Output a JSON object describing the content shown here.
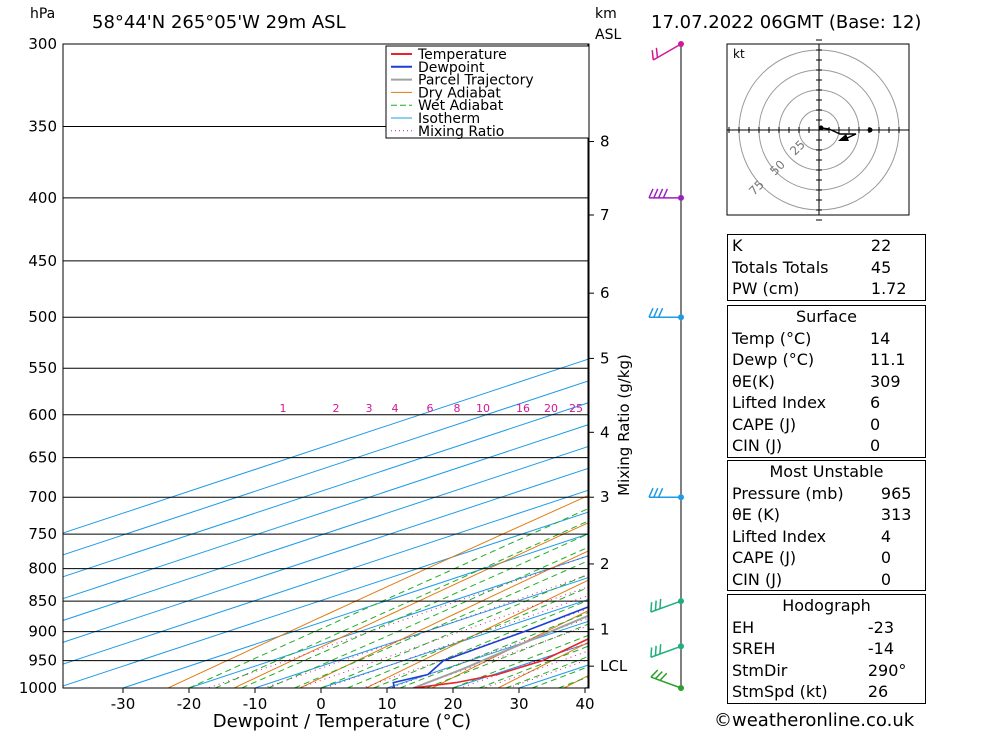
{
  "header": {
    "pressure_unit": "hPa",
    "location": "58°44'N  265°05'W  29m  ASL",
    "height_unit_line1": "km",
    "height_unit_line2": "ASL",
    "datetime": "17.07.2022  06GMT  (Base: 12)"
  },
  "footer": {
    "copyright": "©weatheronline.co.uk"
  },
  "colors": {
    "temperature": "#e8232a",
    "dewpoint": "#1c3fd6",
    "parcel": "#a0a0a0",
    "dry_adiabat": "#e07a10",
    "wet_adiabat": "#1fae1f",
    "isotherm": "#1e9be8",
    "mixing_ratio": "#d0189a"
  },
  "chart_data": {
    "type": "line",
    "title": "58°44'N  265°05'W  29m  ASL",
    "xlabel": "Dewpoint / Temperature (°C)",
    "ylabel": "hPa",
    "x_ticks": [
      -30,
      -20,
      -10,
      0,
      10,
      20,
      30,
      40
    ],
    "pressure_levels": [
      300,
      350,
      400,
      450,
      500,
      550,
      600,
      650,
      700,
      750,
      800,
      850,
      900,
      950,
      1000
    ],
    "height_ticks_km": [
      {
        "label": "8",
        "p": 360
      },
      {
        "label": "7",
        "p": 413
      },
      {
        "label": "6",
        "p": 478
      },
      {
        "label": "5",
        "p": 540
      },
      {
        "label": "4",
        "p": 620
      },
      {
        "label": "3",
        "p": 700
      },
      {
        "label": "2",
        "p": 793
      },
      {
        "label": "1",
        "p": 896
      },
      {
        "label": "LCL",
        "p": 960
      }
    ],
    "mixing_ratio_axis_label": "Mixing Ratio (g/kg)",
    "mixing_ratio_labels": [
      "1",
      "2",
      "3",
      "4",
      "6",
      "8",
      "10",
      "16",
      "20",
      "25"
    ],
    "legend": [
      "Temperature",
      "Dewpoint",
      "Parcel Trajectory",
      "Dry Adiabat",
      "Wet Adiabat",
      "Isotherm",
      "Mixing Ratio"
    ],
    "series": [
      {
        "name": "Temperature",
        "points": [
          [
            1000,
            14
          ],
          [
            990,
            18
          ],
          [
            975,
            20.5
          ],
          [
            950,
            21
          ],
          [
            900,
            17
          ],
          [
            850,
            13
          ],
          [
            800,
            9
          ],
          [
            750,
            5
          ],
          [
            700,
            3
          ],
          [
            650,
            -2
          ],
          [
            610,
            -5
          ],
          [
            600,
            -3
          ],
          [
            550,
            -6
          ],
          [
            500,
            -10
          ],
          [
            450,
            -15
          ],
          [
            400,
            -21
          ],
          [
            350,
            -28
          ],
          [
            300,
            -36
          ]
        ]
      },
      {
        "name": "Dewpoint",
        "points": [
          [
            1000,
            11.1
          ],
          [
            990,
            8.5
          ],
          [
            975,
            10
          ],
          [
            950,
            6
          ],
          [
            900,
            5
          ],
          [
            850,
            3
          ],
          [
            800,
            1
          ],
          [
            750,
            -1
          ],
          [
            725,
            -4
          ],
          [
            700,
            -5
          ],
          [
            650,
            -7
          ],
          [
            625,
            -10
          ],
          [
            600,
            -18
          ],
          [
            590,
            -30
          ],
          [
            550,
            -18
          ],
          [
            530,
            -21
          ],
          [
            500,
            -26
          ],
          [
            475,
            -25
          ],
          [
            450,
            -23
          ],
          [
            400,
            -22
          ],
          [
            375,
            -22
          ],
          [
            350,
            -20
          ],
          [
            320,
            -17
          ],
          [
            300,
            -19
          ]
        ]
      },
      {
        "name": "Parcel Trajectory",
        "points": [
          [
            1000,
            14
          ],
          [
            965,
            12.8
          ],
          [
            900,
            9
          ],
          [
            850,
            6
          ],
          [
            800,
            2.5
          ],
          [
            750,
            -1
          ],
          [
            700,
            -5
          ],
          [
            650,
            -9.5
          ],
          [
            600,
            -14
          ],
          [
            550,
            -19
          ],
          [
            500,
            -25
          ],
          [
            450,
            -31
          ],
          [
            400,
            -38
          ],
          [
            350,
            -46
          ],
          [
            300,
            -55
          ]
        ]
      }
    ],
    "hodograph": {
      "unit": "kt",
      "ring_labels": [
        "25",
        "50",
        "75"
      ]
    },
    "wind_barbs": [
      {
        "p": 1000,
        "dir": 290,
        "speed_kt": 26
      },
      {
        "p": 925,
        "dir": 250,
        "speed_kt": 25
      },
      {
        "p": 850,
        "dir": 250,
        "speed_kt": 25
      },
      {
        "p": 700,
        "dir": 270,
        "speed_kt": 30
      },
      {
        "p": 500,
        "dir": 270,
        "speed_kt": 30
      },
      {
        "p": 400,
        "dir": 270,
        "speed_kt": 35
      },
      {
        "p": 300,
        "dir": 240,
        "speed_kt": 15
      }
    ],
    "indices": {
      "k": {
        "label": "K",
        "value": "22"
      },
      "tt": {
        "label": "Totals Totals",
        "value": "45"
      },
      "pw": {
        "label": "PW (cm)",
        "value": "1.72"
      },
      "surface": {
        "title": "Surface",
        "temp": {
          "label": "Temp (°C)",
          "value": "14"
        },
        "dewp": {
          "label": "Dewp (°C)",
          "value": "11.1"
        },
        "theta": {
          "label": "θE(K)",
          "value": "309"
        },
        "li": {
          "label": "Lifted Index",
          "value": "6"
        },
        "cape": {
          "label": "CAPE (J)",
          "value": "0"
        },
        "cin": {
          "label": "CIN (J)",
          "value": "0"
        }
      },
      "mu": {
        "title": "Most Unstable",
        "pressure": {
          "label": "Pressure (mb)",
          "value": "965"
        },
        "theta": {
          "label": "θE (K)",
          "value": "313"
        },
        "li": {
          "label": "Lifted Index",
          "value": "4"
        },
        "cape": {
          "label": "CAPE (J)",
          "value": "0"
        },
        "cin": {
          "label": "CIN (J)",
          "value": "0"
        }
      },
      "hodo": {
        "title": "Hodograph",
        "eh": {
          "label": "EH",
          "value": "-23"
        },
        "sreh": {
          "label": "SREH",
          "value": "-14"
        },
        "stmdir": {
          "label": "StmDir",
          "value": "290°"
        },
        "stmspd": {
          "label": "StmSpd (kt)",
          "value": "26"
        }
      }
    }
  }
}
